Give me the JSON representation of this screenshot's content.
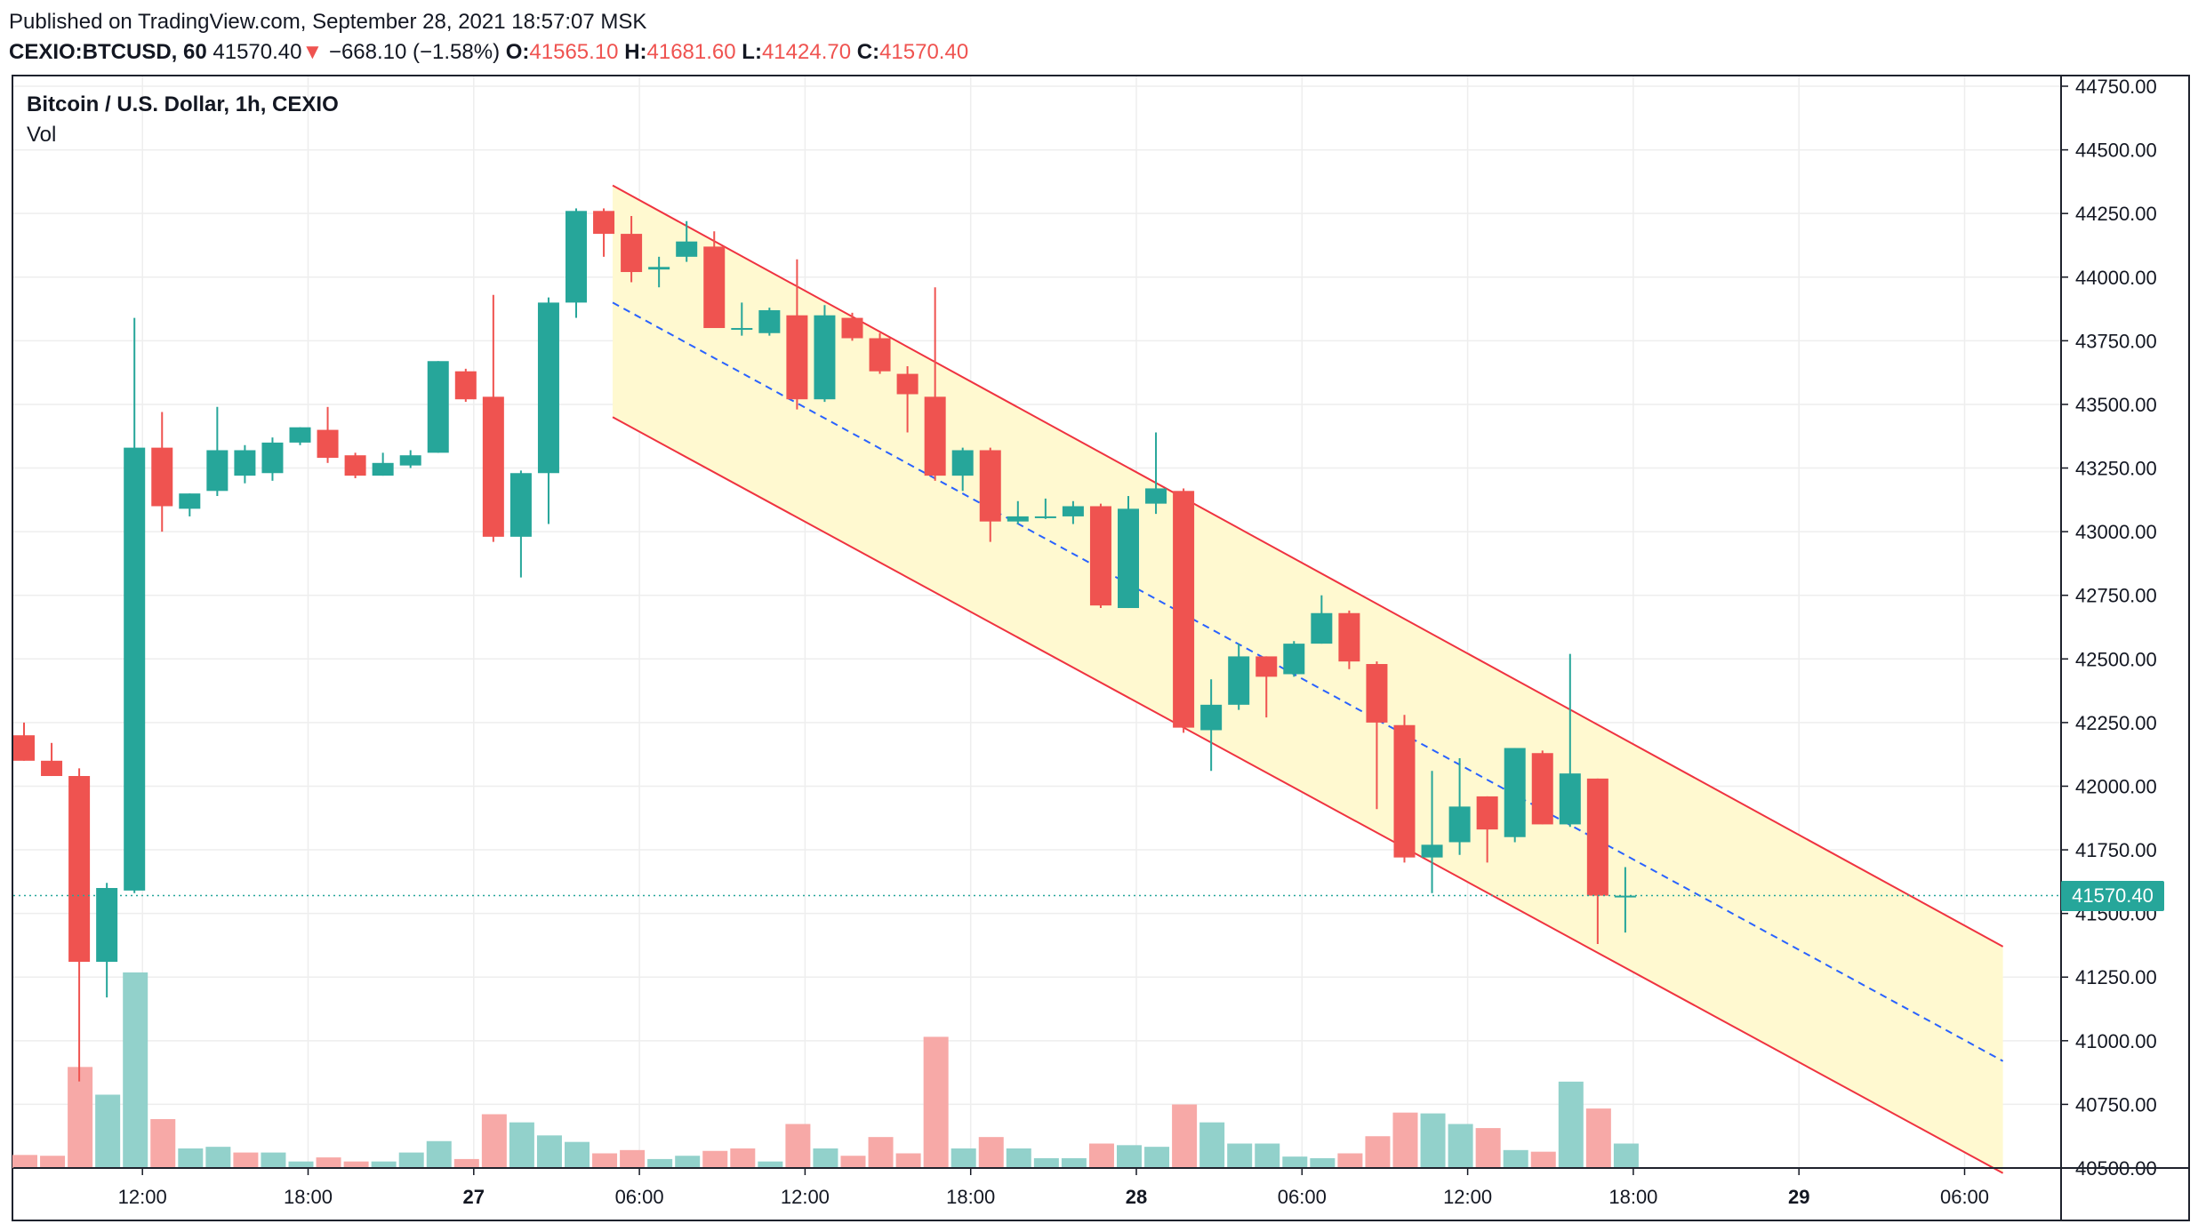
{
  "header": {
    "published": "Published on TradingView.com, September 28, 2021 18:57:07 MSK",
    "symbol": "CEXIO:BTCUSD, 60",
    "last": "41570.40",
    "arrow": "▼",
    "change": "−668.10 (−1.58%)",
    "o_label": "O:",
    "o_value": "41565.10",
    "h_label": "H:",
    "h_value": "41681.60",
    "l_label": "L:",
    "l_value": "41424.70",
    "c_label": "C:",
    "c_value": "41570.40"
  },
  "pane": {
    "title": "Bitcoin / U.S. Dollar, 1h, CEXIO",
    "volume_label": "Vol"
  },
  "last_price_badge": "41570.40",
  "colors": {
    "up": "#26a69a",
    "down": "#ef5350",
    "up_vol": "#92d1cb",
    "down_vol": "#f7a9a7",
    "channel_fill": "#fff9d0",
    "channel_line": "#ef3340",
    "median": "#2962ff",
    "grid": "#eeeeee",
    "frame": "#1e222d"
  },
  "chart_data": {
    "type": "candlestick",
    "title": "Bitcoin / U.S. Dollar, 1h, CEXIO",
    "ylim": [
      40500,
      44750
    ],
    "y_ticks": [
      "40500.00",
      "40750.00",
      "41000.00",
      "41250.00",
      "41500.00",
      "41750.00",
      "42000.00",
      "42250.00",
      "42500.00",
      "42750.00",
      "43000.00",
      "43250.00",
      "43500.00",
      "43750.00",
      "44000.00",
      "44250.00",
      "44500.00",
      "44750.00"
    ],
    "x_ticks": [
      {
        "label": "12:00",
        "index": 4
      },
      {
        "label": "18:00",
        "index": 10
      },
      {
        "label": "27",
        "index": 16
      },
      {
        "label": "06:00",
        "index": 22
      },
      {
        "label": "12:00",
        "index": 28
      },
      {
        "label": "18:00",
        "index": 34
      },
      {
        "label": "28",
        "index": 40
      },
      {
        "label": "06:00",
        "index": 46
      },
      {
        "label": "12:00",
        "index": 52
      },
      {
        "label": "18:00",
        "index": 58
      },
      {
        "label": "29",
        "index": 64
      },
      {
        "label": "06:00",
        "index": 70
      }
    ],
    "candles": [
      {
        "o": 42200,
        "h": 42250,
        "l": 42100,
        "c": 42100
      },
      {
        "o": 42100,
        "h": 42170,
        "l": 42040,
        "c": 42040
      },
      {
        "o": 42040,
        "h": 42070,
        "l": 40840,
        "c": 41310
      },
      {
        "o": 41310,
        "h": 41620,
        "l": 41170,
        "c": 41600
      },
      {
        "o": 41590,
        "h": 43840,
        "l": 41580,
        "c": 43330
      },
      {
        "o": 43330,
        "h": 43470,
        "l": 43000,
        "c": 43100
      },
      {
        "o": 43090,
        "h": 43150,
        "l": 43060,
        "c": 43150
      },
      {
        "o": 43160,
        "h": 43490,
        "l": 43140,
        "c": 43320
      },
      {
        "o": 43220,
        "h": 43340,
        "l": 43190,
        "c": 43320
      },
      {
        "o": 43230,
        "h": 43370,
        "l": 43200,
        "c": 43350
      },
      {
        "o": 43350,
        "h": 43410,
        "l": 43340,
        "c": 43410
      },
      {
        "o": 43400,
        "h": 43490,
        "l": 43270,
        "c": 43290
      },
      {
        "o": 43300,
        "h": 43310,
        "l": 43210,
        "c": 43220
      },
      {
        "o": 43220,
        "h": 43310,
        "l": 43220,
        "c": 43270
      },
      {
        "o": 43260,
        "h": 43320,
        "l": 43250,
        "c": 43300
      },
      {
        "o": 43310,
        "h": 43670,
        "l": 43310,
        "c": 43670
      },
      {
        "o": 43630,
        "h": 43640,
        "l": 43510,
        "c": 43520
      },
      {
        "o": 43530,
        "h": 43930,
        "l": 42960,
        "c": 42980
      },
      {
        "o": 42980,
        "h": 43240,
        "l": 42820,
        "c": 43230
      },
      {
        "o": 43230,
        "h": 43920,
        "l": 43030,
        "c": 43900
      },
      {
        "o": 43900,
        "h": 44270,
        "l": 43840,
        "c": 44260
      },
      {
        "o": 44260,
        "h": 44270,
        "l": 44080,
        "c": 44170
      },
      {
        "o": 44170,
        "h": 44240,
        "l": 43980,
        "c": 44020
      },
      {
        "o": 44030,
        "h": 44080,
        "l": 43960,
        "c": 44040
      },
      {
        "o": 44080,
        "h": 44220,
        "l": 44060,
        "c": 44140
      },
      {
        "o": 44120,
        "h": 44180,
        "l": 43800,
        "c": 43800
      },
      {
        "o": 43800,
        "h": 43900,
        "l": 43770,
        "c": 43800
      },
      {
        "o": 43780,
        "h": 43880,
        "l": 43770,
        "c": 43870
      },
      {
        "o": 43850,
        "h": 44070,
        "l": 43480,
        "c": 43520
      },
      {
        "o": 43520,
        "h": 43890,
        "l": 43510,
        "c": 43850
      },
      {
        "o": 43840,
        "h": 43860,
        "l": 43750,
        "c": 43760
      },
      {
        "o": 43760,
        "h": 43780,
        "l": 43620,
        "c": 43630
      },
      {
        "o": 43620,
        "h": 43650,
        "l": 43390,
        "c": 43540
      },
      {
        "o": 43530,
        "h": 43960,
        "l": 43200,
        "c": 43220
      },
      {
        "o": 43220,
        "h": 43330,
        "l": 43160,
        "c": 43320
      },
      {
        "o": 43320,
        "h": 43330,
        "l": 42960,
        "c": 43040
      },
      {
        "o": 43040,
        "h": 43120,
        "l": 43030,
        "c": 43060
      },
      {
        "o": 43060,
        "h": 43130,
        "l": 43050,
        "c": 43060
      },
      {
        "o": 43060,
        "h": 43120,
        "l": 43030,
        "c": 43100
      },
      {
        "o": 43100,
        "h": 43110,
        "l": 42700,
        "c": 42710
      },
      {
        "o": 42700,
        "h": 43140,
        "l": 42700,
        "c": 43090
      },
      {
        "o": 43110,
        "h": 43390,
        "l": 43070,
        "c": 43170
      },
      {
        "o": 43160,
        "h": 43170,
        "l": 42210,
        "c": 42230
      },
      {
        "o": 42220,
        "h": 42420,
        "l": 42060,
        "c": 42320
      },
      {
        "o": 42320,
        "h": 42560,
        "l": 42300,
        "c": 42510
      },
      {
        "o": 42510,
        "h": 42510,
        "l": 42270,
        "c": 42430
      },
      {
        "o": 42440,
        "h": 42570,
        "l": 42430,
        "c": 42560
      },
      {
        "o": 42560,
        "h": 42750,
        "l": 42560,
        "c": 42680
      },
      {
        "o": 42680,
        "h": 42690,
        "l": 42460,
        "c": 42490
      },
      {
        "o": 42480,
        "h": 42490,
        "l": 41910,
        "c": 42250
      },
      {
        "o": 42240,
        "h": 42280,
        "l": 41700,
        "c": 41720
      },
      {
        "o": 41720,
        "h": 42060,
        "l": 41580,
        "c": 41770
      },
      {
        "o": 41780,
        "h": 42110,
        "l": 41730,
        "c": 41920
      },
      {
        "o": 41960,
        "h": 41960,
        "l": 41700,
        "c": 41830
      },
      {
        "o": 41800,
        "h": 42150,
        "l": 41780,
        "c": 42150
      },
      {
        "o": 42130,
        "h": 42140,
        "l": 41850,
        "c": 41850
      },
      {
        "o": 41850,
        "h": 42520,
        "l": 41840,
        "c": 42050
      },
      {
        "o": 42030,
        "h": 42030,
        "l": 41380,
        "c": 41570
      },
      {
        "o": 41565,
        "h": 41682,
        "l": 41425,
        "c": 41570
      }
    ],
    "volume": [
      {
        "v": 80,
        "dir": "down"
      },
      {
        "v": 75,
        "dir": "down"
      },
      {
        "v": 620,
        "dir": "down"
      },
      {
        "v": 450,
        "dir": "up"
      },
      {
        "v": 1200,
        "dir": "up"
      },
      {
        "v": 300,
        "dir": "down"
      },
      {
        "v": 120,
        "dir": "up"
      },
      {
        "v": 130,
        "dir": "up"
      },
      {
        "v": 95,
        "dir": "down"
      },
      {
        "v": 95,
        "dir": "up"
      },
      {
        "v": 40,
        "dir": "up"
      },
      {
        "v": 65,
        "dir": "down"
      },
      {
        "v": 40,
        "dir": "down"
      },
      {
        "v": 40,
        "dir": "up"
      },
      {
        "v": 95,
        "dir": "up"
      },
      {
        "v": 165,
        "dir": "up"
      },
      {
        "v": 55,
        "dir": "down"
      },
      {
        "v": 330,
        "dir": "down"
      },
      {
        "v": 280,
        "dir": "up"
      },
      {
        "v": 200,
        "dir": "up"
      },
      {
        "v": 160,
        "dir": "up"
      },
      {
        "v": 90,
        "dir": "down"
      },
      {
        "v": 110,
        "dir": "down"
      },
      {
        "v": 55,
        "dir": "up"
      },
      {
        "v": 75,
        "dir": "up"
      },
      {
        "v": 105,
        "dir": "down"
      },
      {
        "v": 120,
        "dir": "down"
      },
      {
        "v": 40,
        "dir": "up"
      },
      {
        "v": 270,
        "dir": "down"
      },
      {
        "v": 120,
        "dir": "up"
      },
      {
        "v": 75,
        "dir": "down"
      },
      {
        "v": 190,
        "dir": "down"
      },
      {
        "v": 90,
        "dir": "down"
      },
      {
        "v": 805,
        "dir": "down"
      },
      {
        "v": 120,
        "dir": "up"
      },
      {
        "v": 190,
        "dir": "down"
      },
      {
        "v": 120,
        "dir": "up"
      },
      {
        "v": 60,
        "dir": "up"
      },
      {
        "v": 60,
        "dir": "up"
      },
      {
        "v": 150,
        "dir": "down"
      },
      {
        "v": 140,
        "dir": "up"
      },
      {
        "v": 130,
        "dir": "up"
      },
      {
        "v": 390,
        "dir": "down"
      },
      {
        "v": 280,
        "dir": "up"
      },
      {
        "v": 150,
        "dir": "up"
      },
      {
        "v": 150,
        "dir": "up"
      },
      {
        "v": 70,
        "dir": "up"
      },
      {
        "v": 60,
        "dir": "up"
      },
      {
        "v": 90,
        "dir": "down"
      },
      {
        "v": 195,
        "dir": "down"
      },
      {
        "v": 340,
        "dir": "down"
      },
      {
        "v": 335,
        "dir": "up"
      },
      {
        "v": 270,
        "dir": "up"
      },
      {
        "v": 245,
        "dir": "down"
      },
      {
        "v": 110,
        "dir": "up"
      },
      {
        "v": 100,
        "dir": "down"
      },
      {
        "v": 530,
        "dir": "up"
      },
      {
        "v": 365,
        "dir": "down"
      },
      {
        "v": 150,
        "dir": "up"
      }
    ],
    "channel": {
      "start_index": 21,
      "end_index": 72,
      "upper": [
        44360,
        41370
      ],
      "lower": [
        43450,
        40480
      ],
      "median": [
        43900,
        40920
      ]
    },
    "last_price": 41570.4
  }
}
